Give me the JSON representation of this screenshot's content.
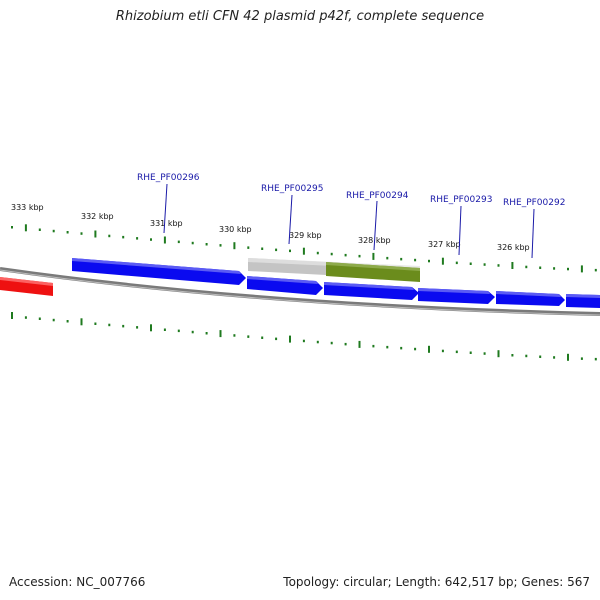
{
  "title": "Rhizobium etli CFN 42 plasmid p42f, complete sequence",
  "footer": {
    "accession": "Accession: NC_007766",
    "summary": "Topology: circular; Length: 642,517 bp; Genes: 567"
  },
  "scale": {
    "unit_label": "kbp",
    "labels": [
      "333 kbp",
      "332 kbp",
      "331 kbp",
      "330 kbp",
      "329 kbp",
      "328 kbp",
      "327 kbp",
      "326 kbp"
    ]
  },
  "genes": [
    {
      "name": "RHE_PF00296"
    },
    {
      "name": "RHE_PF00295"
    },
    {
      "name": "RHE_PF00294"
    },
    {
      "name": "RHE_PF00293"
    },
    {
      "name": "RHE_PF00292"
    }
  ],
  "colors": {
    "forward_gene": "#0a0af0",
    "reverse_gene": "#ee1111",
    "other_feature": "#6b8c1c",
    "feature_shadow": "#bdbdbd",
    "backbone": "#808080",
    "ticks": "#1f7a1f",
    "label_line": "#1a1aa8"
  }
}
